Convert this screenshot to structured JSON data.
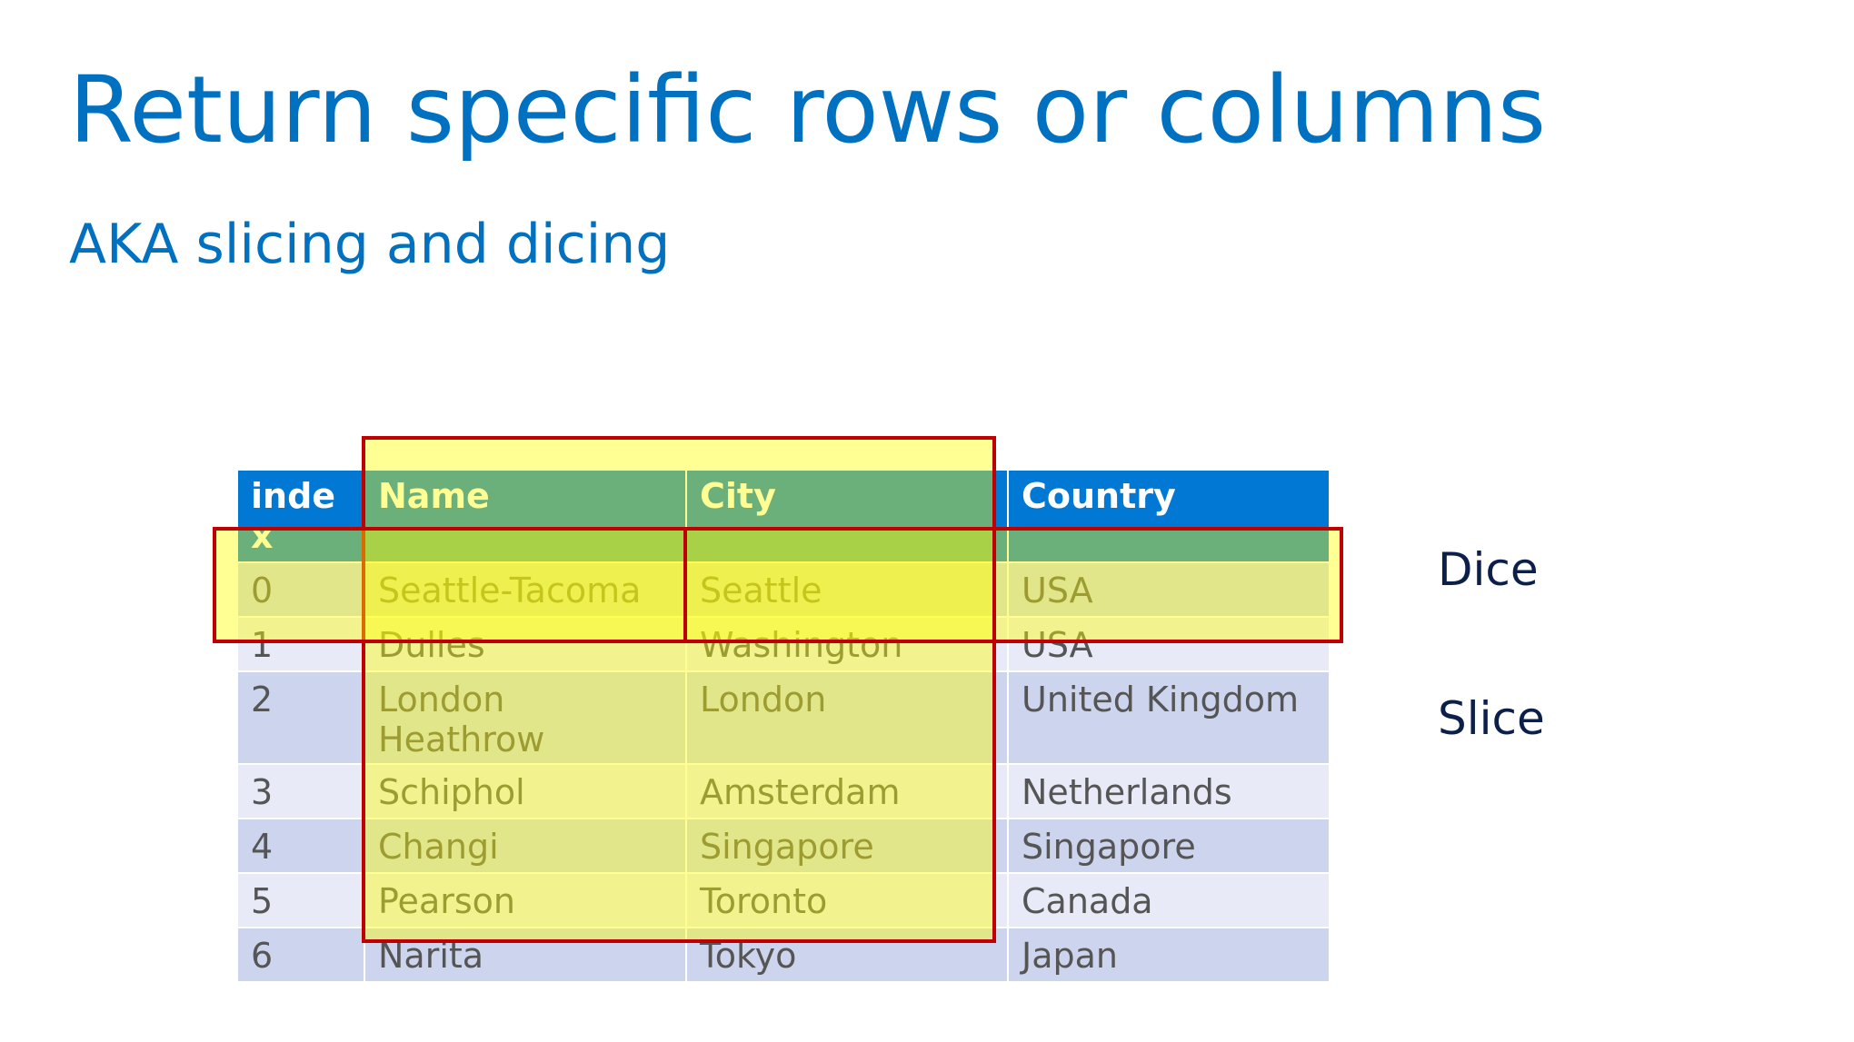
{
  "slide": {
    "title": "Return specific rows or columns",
    "subtitle": "AKA slicing and dicing"
  },
  "table": {
    "headers": [
      "index",
      "Name",
      "City",
      "Country"
    ],
    "rows": [
      {
        "index": "0",
        "name": "Seattle-Tacoma",
        "city": "Seattle",
        "country": "USA"
      },
      {
        "index": "1",
        "name": "Dulles",
        "city": "Washington",
        "country": "USA"
      },
      {
        "index": "2",
        "name": "London Heathrow",
        "city": "London",
        "country": "United Kingdom"
      },
      {
        "index": "3",
        "name": "Schiphol",
        "city": "Amsterdam",
        "country": "Netherlands"
      },
      {
        "index": "4",
        "name": "Changi",
        "city": "Singapore",
        "country": "Singapore"
      },
      {
        "index": "5",
        "name": "Pearson",
        "city": "Toronto",
        "country": "Canada"
      },
      {
        "index": "6",
        "name": "Narita",
        "city": "Tokyo",
        "country": "Japan"
      }
    ]
  },
  "annotations": {
    "dice_label": "Dice",
    "slice_label": "Slice"
  },
  "colors": {
    "title": "#0070c0",
    "header": "#0078d4",
    "row_dark": "#cdd5ee",
    "row_light": "#e8ebf7",
    "highlight_fill": "#ffff00",
    "highlight_border": "#c00000"
  }
}
